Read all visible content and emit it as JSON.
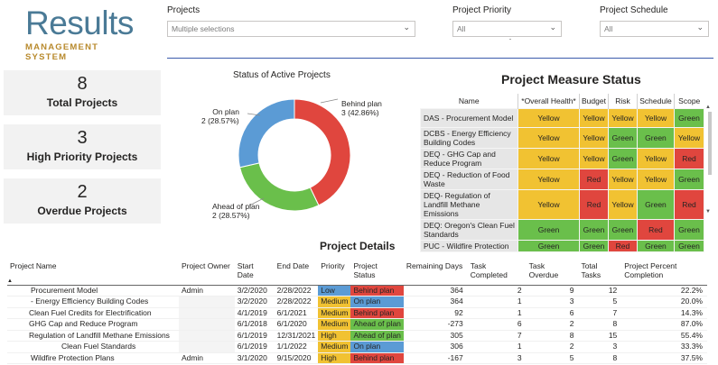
{
  "logo": {
    "main": "Results",
    "sub": "MANAGEMENT SYSTEM"
  },
  "filters": [
    {
      "label": "Projects",
      "value": "Multiple selections"
    },
    {
      "label": "Project Priority",
      "value": "All"
    },
    {
      "label": "Project Schedule",
      "value": "All"
    }
  ],
  "kpis": [
    {
      "value": "8",
      "label": "Total Projects"
    },
    {
      "value": "3",
      "label": "High Priority Projects"
    },
    {
      "value": "2",
      "label": "Overdue Projects"
    }
  ],
  "donut": {
    "title": "Status of Active Projects",
    "segments": [
      {
        "name": "Behind plan",
        "count": 3,
        "pct": "3 (42.86%)",
        "label1": "Behind plan",
        "color": "#e0463e"
      },
      {
        "name": "Ahead of plan",
        "count": 2,
        "pct": "2 (28.57%)",
        "label1": "Ahead of plan",
        "color": "#6abf4b"
      },
      {
        "name": "On plan",
        "count": 2,
        "pct": "2 (28.57%)",
        "label1": "On plan",
        "color": "#5b9bd5"
      }
    ]
  },
  "measure_status": {
    "title": "Project Measure Status",
    "headers": [
      "Name",
      "*Overall Health*",
      "Budget",
      "Risk",
      "Schedule",
      "Scope"
    ],
    "rows": [
      {
        "name": "DAS - Procurement Model",
        "cells": [
          "Yellow",
          "Yellow",
          "Yellow",
          "Yellow",
          "Green"
        ]
      },
      {
        "name": "DCBS - Energy Efficiency Building Codes",
        "cells": [
          "Yellow",
          "Yellow",
          "Green",
          "Green",
          "Yellow"
        ]
      },
      {
        "name": "DEQ - GHG Cap and Reduce Program",
        "cells": [
          "Yellow",
          "Yellow",
          "Green",
          "Yellow",
          "Red"
        ]
      },
      {
        "name": "DEQ - Reduction of Food Waste",
        "cells": [
          "Yellow",
          "Red",
          "Yellow",
          "Yellow",
          "Green"
        ]
      },
      {
        "name": "DEQ- Regulation of Landfill Methane Emissions",
        "cells": [
          "Yellow",
          "Red",
          "Yellow",
          "Green",
          "Red"
        ]
      },
      {
        "name": "DEQ: Oregon's Clean Fuel Standards",
        "cells": [
          "Green",
          "Green",
          "Green",
          "Red",
          "Green"
        ]
      },
      {
        "name": "PUC - Wildfire Protection",
        "cells": [
          "Green",
          "Green",
          "Red",
          "Green",
          "Green"
        ]
      }
    ]
  },
  "project_details": {
    "title": "Project Details",
    "headers": [
      "Project Name",
      "Project Owner",
      "Start Date",
      "End Date",
      "Priority",
      "Project Status",
      "Remaining Days",
      "Task Completed",
      "Task Overdue",
      "Total Tasks",
      "Project Percent Completion"
    ],
    "rows": [
      {
        "name": "Procurement Model",
        "owner": "Admin",
        "start": "3/2/2020",
        "end": "2/28/2022",
        "priority": "Low",
        "status": "Behind plan",
        "remaining": "364",
        "completed": "2",
        "overdue": "9",
        "total": "12",
        "pct": "22.2%"
      },
      {
        "name": " - Energy Efficiency Building Codes",
        "owner": "",
        "start": "3/2/2020",
        "end": "2/28/2022",
        "priority": "Medium",
        "status": "On plan",
        "remaining": "364",
        "completed": "1",
        "overdue": "3",
        "total": "5",
        "pct": "20.0%"
      },
      {
        "name": "Clean Fuel Credits for Electrification",
        "owner": "",
        "start": "4/1/2019",
        "end": "6/1/2021",
        "priority": "Medium",
        "status": "Behind plan",
        "remaining": "92",
        "completed": "1",
        "overdue": "6",
        "total": "7",
        "pct": "14.3%"
      },
      {
        "name": "GHG Cap and Reduce Program",
        "owner": "",
        "start": "6/1/2018",
        "end": "6/1/2020",
        "priority": "Medium",
        "status": "Ahead of plan",
        "remaining": "-273",
        "completed": "6",
        "overdue": "2",
        "total": "8",
        "pct": "87.0%"
      },
      {
        "name": "Regulation of Landfill Methane Emissions",
        "owner": "",
        "start": "6/1/2019",
        "end": "12/31/2021",
        "priority": "High",
        "status": "Ahead of plan",
        "remaining": "305",
        "completed": "7",
        "overdue": "8",
        "total": "15",
        "pct": "55.4%"
      },
      {
        "name": "Clean Fuel Standards",
        "owner": "",
        "start": "6/1/2019",
        "end": "1/1/2022",
        "priority": "Medium",
        "status": "On plan",
        "remaining": "306",
        "completed": "1",
        "overdue": "2",
        "total": "3",
        "pct": "33.3%"
      },
      {
        "name": "Wildfire Protection Plans",
        "owner": "Admin",
        "start": "3/1/2020",
        "end": "9/15/2020",
        "priority": "High",
        "status": "Behind plan",
        "remaining": "-167",
        "completed": "3",
        "overdue": "5",
        "total": "8",
        "pct": "37.5%"
      }
    ]
  }
}
